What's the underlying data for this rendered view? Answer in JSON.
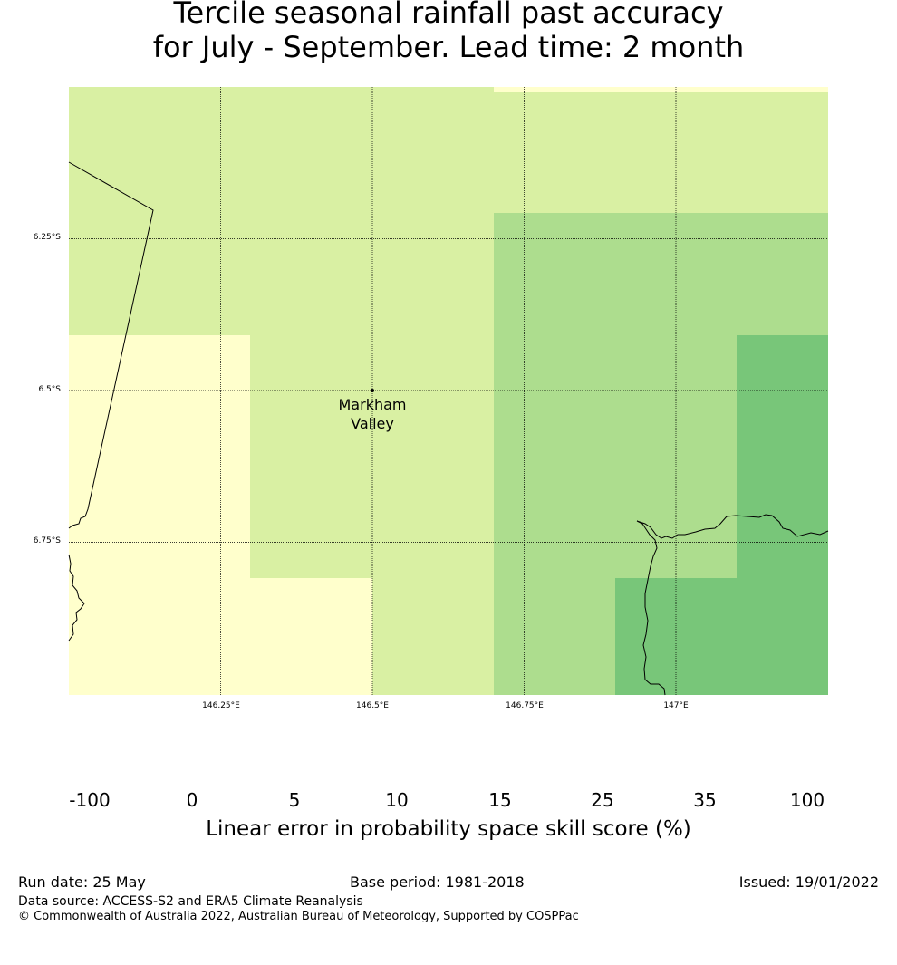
{
  "title": {
    "line1": "Tercile seasonal rainfall past accuracy",
    "line2": "for July - September. Lead time: 2 month"
  },
  "map": {
    "lat_labels": [
      "6.25°S",
      "6.5°S",
      "6.75°S"
    ],
    "lon_labels": [
      "146.25°E",
      "146.5°E",
      "146.75°E",
      "147°E"
    ],
    "place": {
      "name_line1": "Markham",
      "name_line2": "Valley"
    },
    "colors": {
      "0_5": "#ffffcc",
      "5_10": "#d9f0a3",
      "10_15": "#addd8e",
      "15_25": "#78c679",
      "25_35": "#41ab5d",
      "35_100": "#238443"
    }
  },
  "colorbar": {
    "ticks": [
      "-100",
      "0",
      "5",
      "10",
      "15",
      "25",
      "35",
      "100"
    ],
    "colors": [
      "#ffffff",
      "#ffffcc",
      "#d9f0a3",
      "#addd8e",
      "#78c679",
      "#41ab5d",
      "#238443"
    ],
    "label": "Linear error in probability space skill score (%)"
  },
  "footer": {
    "run_date": "Run date: 25 May",
    "base_period": "Base period: 1981-2018",
    "issued": "Issued: 19/01/2022",
    "data_source": "Data source: ACCESS-S2 and ERA5 Climate Reanalysis",
    "copyright": "© Commonwealth of Australia 2022, Australian Bureau of Meteorology, Supported by COSPPac"
  }
}
